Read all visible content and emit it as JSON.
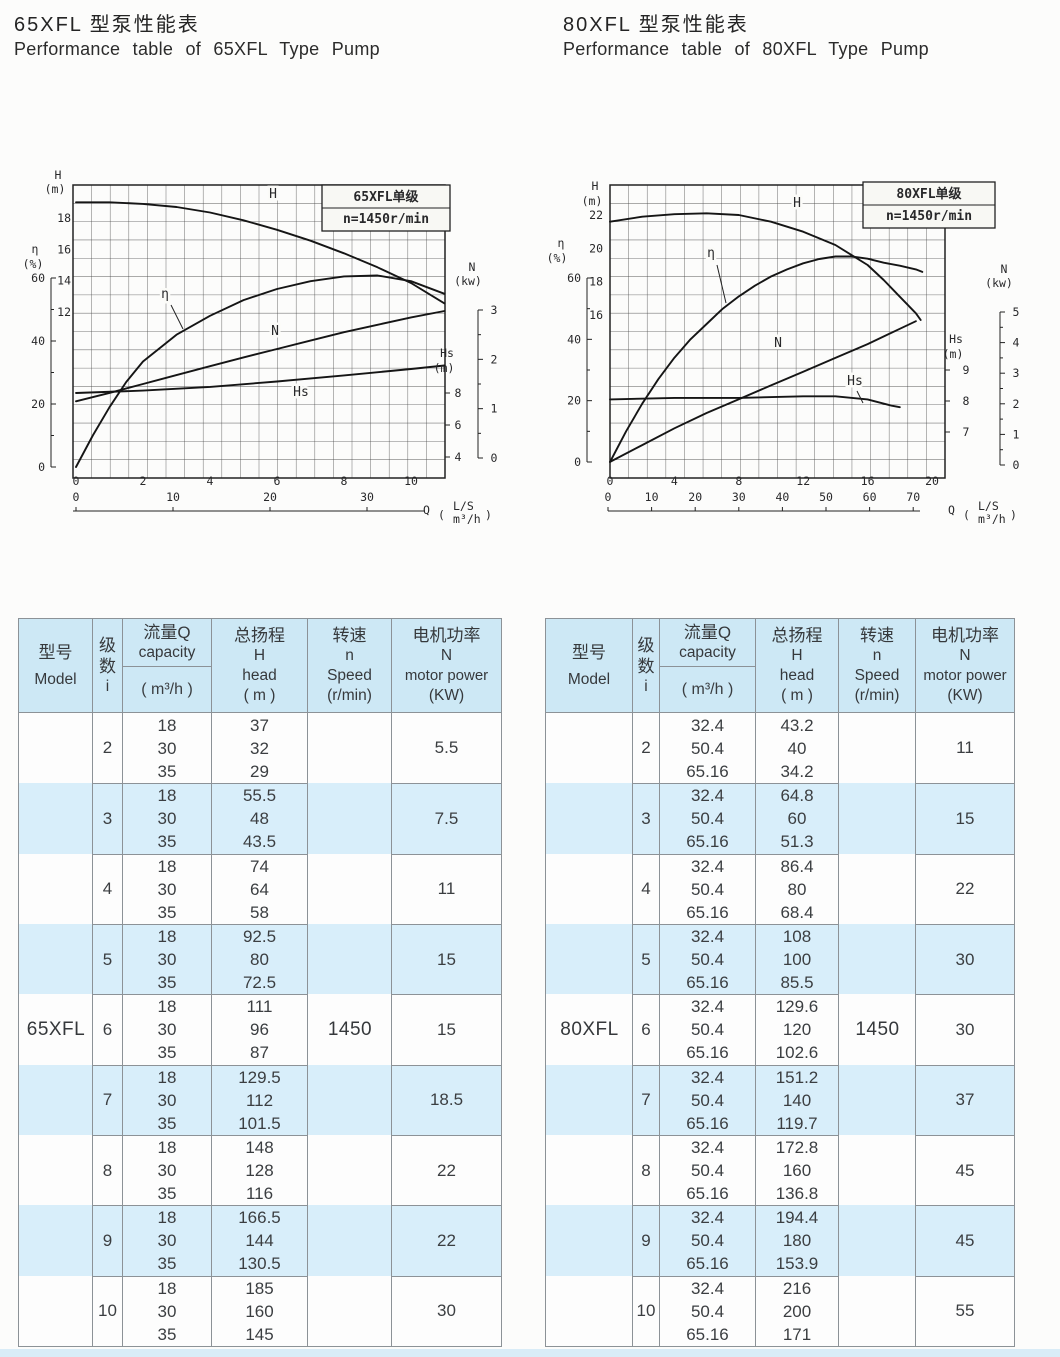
{
  "colors": {
    "header_bg": "#cde8f5",
    "stripe_bg": "#d8eefa",
    "table_border": "#8c9297",
    "text_main": "#3b3e41",
    "bottom_strip": "#d9ecf7"
  },
  "table_headers": {
    "model_zh": "型号",
    "model_en": "Model",
    "stages_zh": "级数",
    "stages_en": "i",
    "capacity_zh": "流量Q",
    "capacity_en": "capacity",
    "capacity_unit": "( m³/h )",
    "head_zh": "总扬程",
    "head_sym": "H",
    "head_en": "head",
    "head_unit": "( m )",
    "speed_zh": "转速",
    "speed_sym": "n",
    "speed_en": "Speed",
    "speed_unit": "(r/min)",
    "power_zh": "电机功率",
    "power_sym": "N",
    "power_en": "motor power",
    "power_unit": "(KW)"
  },
  "sections": {
    "left": {
      "title_zh": "65XFL 型泵性能表",
      "title_en": "Performance table of 65XFL Type Pump",
      "table": {
        "model": "65XFL",
        "speed": "1450",
        "rows": [
          {
            "i": "2",
            "q": [
              "18",
              "30",
              "35"
            ],
            "h": [
              "37",
              "32",
              "29"
            ],
            "n": "5.5"
          },
          {
            "i": "3",
            "q": [
              "18",
              "30",
              "35"
            ],
            "h": [
              "55.5",
              "48",
              "43.5"
            ],
            "n": "7.5"
          },
          {
            "i": "4",
            "q": [
              "18",
              "30",
              "35"
            ],
            "h": [
              "74",
              "64",
              "58"
            ],
            "n": "11"
          },
          {
            "i": "5",
            "q": [
              "18",
              "30",
              "35"
            ],
            "h": [
              "92.5",
              "80",
              "72.5"
            ],
            "n": "15"
          },
          {
            "i": "6",
            "q": [
              "18",
              "30",
              "35"
            ],
            "h": [
              "111",
              "96",
              "87"
            ],
            "n": "15"
          },
          {
            "i": "7",
            "q": [
              "18",
              "30",
              "35"
            ],
            "h": [
              "129.5",
              "112",
              "101.5"
            ],
            "n": "18.5"
          },
          {
            "i": "8",
            "q": [
              "18",
              "30",
              "35"
            ],
            "h": [
              "148",
              "128",
              "116"
            ],
            "n": "22"
          },
          {
            "i": "9",
            "q": [
              "18",
              "30",
              "35"
            ],
            "h": [
              "166.5",
              "144",
              "130.5"
            ],
            "n": "22"
          },
          {
            "i": "10",
            "q": [
              "18",
              "30",
              "35"
            ],
            "h": [
              "185",
              "160",
              "145"
            ],
            "n": "30"
          }
        ]
      }
    },
    "right": {
      "title_zh": "80XFL 型泵性能表",
      "title_en": "Performance table of 80XFL Type Pump",
      "table": {
        "model": "80XFL",
        "speed": "1450",
        "rows": [
          {
            "i": "2",
            "q": [
              "32.4",
              "50.4",
              "65.16"
            ],
            "h": [
              "43.2",
              "40",
              "34.2"
            ],
            "n": "11"
          },
          {
            "i": "3",
            "q": [
              "32.4",
              "50.4",
              "65.16"
            ],
            "h": [
              "64.8",
              "60",
              "51.3"
            ],
            "n": "15"
          },
          {
            "i": "4",
            "q": [
              "32.4",
              "50.4",
              "65.16"
            ],
            "h": [
              "86.4",
              "80",
              "68.4"
            ],
            "n": "22"
          },
          {
            "i": "5",
            "q": [
              "32.4",
              "50.4",
              "65.16"
            ],
            "h": [
              "108",
              "100",
              "85.5"
            ],
            "n": "30"
          },
          {
            "i": "6",
            "q": [
              "32.4",
              "50.4",
              "65.16"
            ],
            "h": [
              "129.6",
              "120",
              "102.6"
            ],
            "n": "30"
          },
          {
            "i": "7",
            "q": [
              "32.4",
              "50.4",
              "65.16"
            ],
            "h": [
              "151.2",
              "140",
              "119.7"
            ],
            "n": "37"
          },
          {
            "i": "8",
            "q": [
              "32.4",
              "50.4",
              "65.16"
            ],
            "h": [
              "172.8",
              "160",
              "136.8"
            ],
            "n": "45"
          },
          {
            "i": "9",
            "q": [
              "32.4",
              "50.4",
              "65.16"
            ],
            "h": [
              "194.4",
              "180",
              "153.9"
            ],
            "n": "45"
          },
          {
            "i": "10",
            "q": [
              "32.4",
              "50.4",
              "65.16"
            ],
            "h": [
              "216",
              "200",
              "171"
            ],
            "n": "55"
          }
        ]
      }
    }
  },
  "chart_data": [
    {
      "type": "line",
      "title": "65XFL单级",
      "speed_note": "n=1450r/min",
      "x_axis": {
        "label": "Q",
        "unit_top": "L/S",
        "unit_bottom": "m³/h",
        "ls_ticks": [
          0,
          2,
          4,
          6,
          8,
          10
        ],
        "m3h_ticks": [
          0,
          10,
          20,
          30
        ]
      },
      "axes": {
        "H": {
          "label": "H",
          "unit": "(m)",
          "ticks": [
            18,
            16,
            14,
            12
          ]
        },
        "eta": {
          "label": "η",
          "unit": "(%)",
          "ticks": [
            60,
            40,
            20,
            0
          ]
        },
        "N": {
          "label": "N",
          "unit": "(kw)",
          "ticks": [
            3,
            2,
            1,
            0
          ]
        },
        "Hs": {
          "label": "Hs",
          "unit": "(m)",
          "ticks": [
            8,
            6,
            4
          ]
        }
      },
      "series": [
        {
          "name": "H",
          "axis": "H",
          "label": "H",
          "points_q_ls": [
            [
              0,
              19
            ],
            [
              1,
              19
            ],
            [
              2,
              18.9
            ],
            [
              3,
              18.7
            ],
            [
              4,
              18.35
            ],
            [
              5,
              17.85
            ],
            [
              6,
              17.25
            ],
            [
              7,
              16.55
            ],
            [
              8,
              15.75
            ],
            [
              9,
              14.85
            ],
            [
              10,
              13.85
            ],
            [
              11,
              12.55
            ]
          ]
        },
        {
          "name": "eta",
          "axis": "eta",
          "label": "η",
          "points_q_ls": [
            [
              0,
              0
            ],
            [
              0.5,
              10
            ],
            [
              1,
              19
            ],
            [
              1.5,
              27
            ],
            [
              2,
              33.5
            ],
            [
              3,
              42
            ],
            [
              4,
              48
            ],
            [
              5,
              53
            ],
            [
              6,
              56.5
            ],
            [
              7,
              59
            ],
            [
              8,
              60.5
            ],
            [
              9,
              60.8
            ],
            [
              10,
              59
            ],
            [
              11,
              55
            ]
          ]
        },
        {
          "name": "N",
          "axis": "N",
          "label": "N",
          "points_q_ls": [
            [
              0,
              1.15
            ],
            [
              1,
              1.32
            ],
            [
              2,
              1.5
            ],
            [
              3,
              1.68
            ],
            [
              4,
              1.86
            ],
            [
              5,
              2.04
            ],
            [
              6,
              2.21
            ],
            [
              7,
              2.38
            ],
            [
              8,
              2.55
            ],
            [
              9,
              2.7
            ],
            [
              10,
              2.85
            ],
            [
              11,
              2.98
            ]
          ]
        },
        {
          "name": "Hs",
          "axis": "Hs",
          "label": "Hs",
          "points_q_ls": [
            [
              0,
              8
            ],
            [
              2,
              8.15
            ],
            [
              4,
              8.38
            ],
            [
              6,
              8.72
            ],
            [
              8,
              9.1
            ],
            [
              10,
              9.5
            ],
            [
              11,
              9.72
            ]
          ]
        }
      ]
    },
    {
      "type": "line",
      "title": "80XFL单级",
      "speed_note": "n=1450r/min",
      "x_axis": {
        "label": "Q",
        "unit_top": "L/S",
        "unit_bottom": "m³/h",
        "ls_ticks": [
          0,
          4,
          8,
          12,
          16,
          20
        ],
        "m3h_ticks": [
          0,
          10,
          20,
          30,
          40,
          50,
          60,
          70
        ]
      },
      "axes": {
        "H": {
          "label": "H",
          "unit": "(m)",
          "ticks": [
            22,
            20,
            18,
            16
          ]
        },
        "eta": {
          "label": "η",
          "unit": "(%)",
          "ticks": [
            60,
            40,
            20,
            0
          ]
        },
        "N": {
          "label": "N",
          "unit": "(kw)",
          "ticks": [
            5,
            4,
            3,
            2,
            1,
            0
          ]
        },
        "Hs": {
          "label": "Hs",
          "unit": "(m)",
          "ticks": [
            9,
            8,
            7
          ]
        }
      },
      "series": [
        {
          "name": "H",
          "axis": "H",
          "label": "H",
          "points_q_ls": [
            [
              0,
              21.6
            ],
            [
              2,
              21.9
            ],
            [
              4,
              22.05
            ],
            [
              6,
              22.1
            ],
            [
              8,
              22
            ],
            [
              10,
              21.6
            ],
            [
              12,
              21
            ],
            [
              14,
              20.2
            ],
            [
              16,
              19
            ],
            [
              17,
              18.1
            ],
            [
              18,
              17.1
            ],
            [
              19,
              16.1
            ],
            [
              19.3,
              15.7
            ]
          ]
        },
        {
          "name": "eta",
          "axis": "eta",
          "label": "η",
          "points_q_ls": [
            [
              0,
              0
            ],
            [
              1,
              10
            ],
            [
              2,
              19
            ],
            [
              3,
              27
            ],
            [
              4,
              34
            ],
            [
              5,
              40
            ],
            [
              6,
              45
            ],
            [
              7,
              50
            ],
            [
              8,
              54
            ],
            [
              9,
              57.5
            ],
            [
              10,
              60.5
            ],
            [
              11,
              62.8
            ],
            [
              12,
              64.8
            ],
            [
              13,
              66.2
            ],
            [
              14,
              67
            ],
            [
              15,
              67
            ],
            [
              16,
              66.3
            ],
            [
              17,
              65
            ],
            [
              18,
              64
            ],
            [
              19,
              62.8
            ],
            [
              19.4,
              62
            ]
          ]
        },
        {
          "name": "N",
          "axis": "N",
          "label": "N",
          "points_q_ls": [
            [
              0,
              0.1
            ],
            [
              2,
              0.65
            ],
            [
              4,
              1.2
            ],
            [
              6,
              1.7
            ],
            [
              8,
              2.15
            ],
            [
              10,
              2.6
            ],
            [
              12,
              3.05
            ],
            [
              14,
              3.5
            ],
            [
              16,
              3.95
            ],
            [
              18,
              4.45
            ],
            [
              19,
              4.7
            ]
          ]
        },
        {
          "name": "Hs",
          "axis": "Hs",
          "label": "Hs",
          "points_q_ls": [
            [
              0,
              8.05
            ],
            [
              4,
              8.1
            ],
            [
              8,
              8.1
            ],
            [
              12,
              8.15
            ],
            [
              14,
              8.15
            ],
            [
              16,
              8.05
            ],
            [
              17.5,
              7.85
            ],
            [
              18,
              7.8
            ]
          ]
        }
      ]
    }
  ]
}
